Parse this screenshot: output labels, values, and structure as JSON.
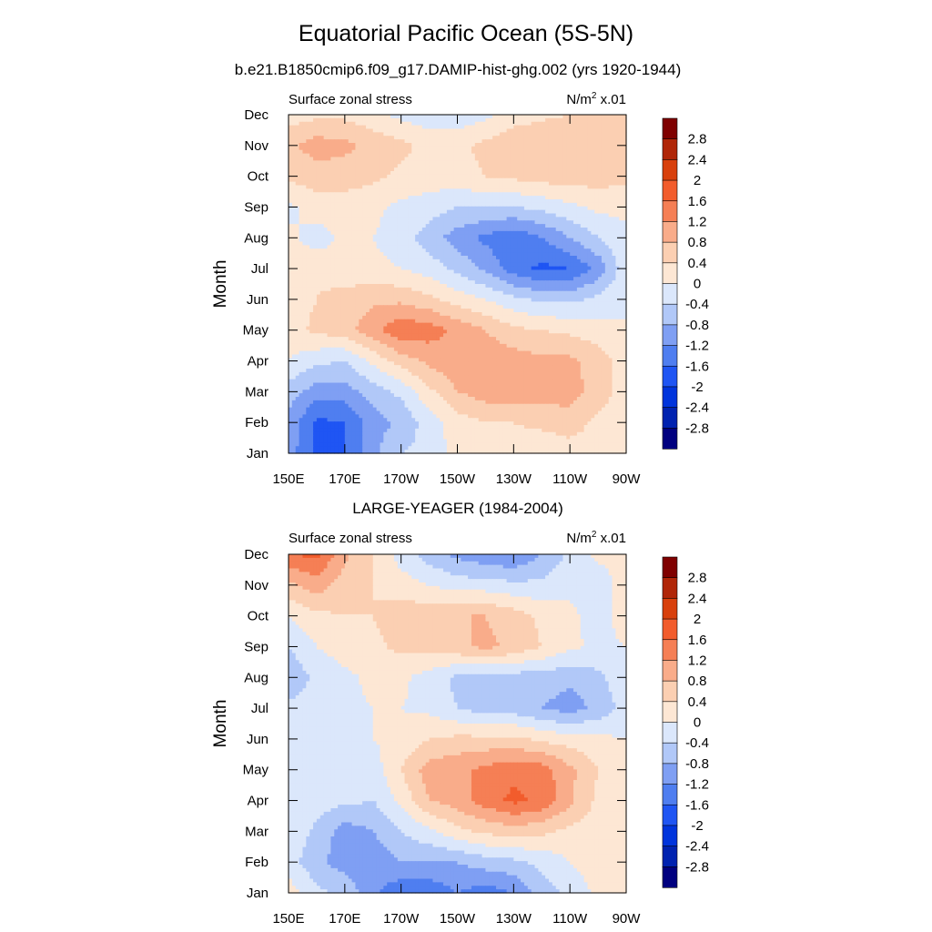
{
  "figure": {
    "title": "Equatorial Pacific Ocean (5S-5N)"
  },
  "chart_data": [
    {
      "type": "heatmap",
      "title": "b.e21.B1850cmip6.f09_g17.DAMIP-hist-ghg.002 (yrs 1920-1944)",
      "left_label": "Surface zonal stress",
      "units_main": "N/m",
      "units_sup": "2",
      "units_scale": "x.01",
      "ylabel": "Month",
      "xlabel": "",
      "x_ticks": [
        "150E",
        "170E",
        "170W",
        "150W",
        "130W",
        "110W",
        "90W"
      ],
      "y_ticks": [
        "Jan",
        "Feb",
        "Mar",
        "Apr",
        "May",
        "Jun",
        "Jul",
        "Aug",
        "Sep",
        "Oct",
        "Nov",
        "Dec"
      ],
      "levels": [
        -2.8,
        -2.4,
        -2,
        -1.6,
        -1.2,
        -0.8,
        -0.4,
        0,
        0.4,
        0.8,
        1.2,
        1.6,
        2,
        2.4,
        2.8
      ],
      "grid": [
        [
          -1.0,
          -1.7,
          -1.6,
          -0.9,
          -0.4,
          -0.3,
          0.2,
          0.3,
          0.2,
          0.1,
          0.2,
          0.2,
          0.2
        ],
        [
          -0.9,
          -1.7,
          -1.6,
          -1.0,
          -0.7,
          -0.2,
          0.2,
          0.4,
          0.4,
          0.5,
          0.6,
          0.3,
          0.2
        ],
        [
          -0.6,
          -1.0,
          -1.0,
          -0.6,
          -0.3,
          0.3,
          0.8,
          1.0,
          1.1,
          1.0,
          1.0,
          0.6,
          0.2
        ],
        [
          0.0,
          -0.3,
          -0.4,
          0.1,
          0.6,
          0.9,
          1.1,
          1.1,
          1.0,
          0.9,
          0.9,
          0.6,
          0.2
        ],
        [
          0.2,
          0.5,
          0.6,
          1.1,
          1.5,
          1.4,
          1.1,
          0.8,
          0.5,
          0.4,
          0.3,
          0.2,
          0.0
        ],
        [
          0.2,
          0.4,
          0.6,
          0.7,
          0.7,
          0.5,
          0.2,
          0.0,
          -0.3,
          -0.5,
          -0.5,
          -0.3,
          0.0
        ],
        [
          0.3,
          0.3,
          0.1,
          0.1,
          0.0,
          -0.2,
          -0.5,
          -0.9,
          -1.4,
          -1.7,
          -1.6,
          -1.1,
          -0.1
        ],
        [
          0.1,
          -0.2,
          0.1,
          0.0,
          -0.2,
          -0.6,
          -1.0,
          -1.3,
          -1.5,
          -1.2,
          -0.8,
          -0.4,
          -0.1
        ],
        [
          -0.1,
          0.2,
          0.2,
          0.1,
          -0.1,
          -0.2,
          -0.4,
          -0.4,
          -0.4,
          -0.3,
          -0.1,
          0.1,
          0.1
        ],
        [
          0.5,
          0.6,
          0.6,
          0.5,
          0.3,
          0.2,
          0.3,
          0.4,
          0.5,
          0.6,
          0.6,
          0.6,
          0.5
        ],
        [
          0.7,
          1.0,
          0.9,
          0.7,
          0.5,
          0.3,
          0.3,
          0.5,
          0.7,
          0.8,
          0.8,
          0.8,
          0.6
        ],
        [
          0.2,
          0.3,
          0.3,
          0.1,
          -0.1,
          -0.3,
          -0.3,
          -0.1,
          0.2,
          0.3,
          0.4,
          0.5,
          0.4
        ]
      ]
    },
    {
      "type": "heatmap",
      "title": "LARGE-YEAGER (1984-2004)",
      "left_label": "Surface zonal stress",
      "units_main": "N/m",
      "units_sup": "2",
      "units_scale": "x.01",
      "ylabel": "Month",
      "xlabel": "",
      "x_ticks": [
        "150E",
        "170E",
        "170W",
        "150W",
        "130W",
        "110W",
        "90W"
      ],
      "y_ticks": [
        "Jan",
        "Feb",
        "Mar",
        "Apr",
        "May",
        "Jun",
        "Jul",
        "Aug",
        "Sep",
        "Oct",
        "Nov",
        "Dec"
      ],
      "levels": [
        -2.8,
        -2.4,
        -2,
        -1.6,
        -1.2,
        -0.8,
        -0.4,
        0,
        0.4,
        0.8,
        1.2,
        1.6,
        2,
        2.4,
        2.8
      ],
      "grid": [
        [
          0.2,
          -0.3,
          -0.5,
          -1.1,
          -1.5,
          -1.5,
          -1.2,
          -1.4,
          -1.2,
          -0.6,
          -0.3,
          0.1,
          0.3
        ],
        [
          -0.2,
          -0.7,
          -1.0,
          -1.1,
          -0.8,
          -0.8,
          -0.8,
          -0.6,
          -0.5,
          -0.3,
          0.0,
          0.2,
          0.2
        ],
        [
          -0.1,
          -0.5,
          -1.0,
          -0.8,
          -0.4,
          -0.1,
          0.3,
          0.5,
          0.6,
          0.5,
          0.3,
          0.2,
          0.2
        ],
        [
          -0.1,
          -0.2,
          -0.3,
          -0.4,
          0.1,
          0.8,
          1.0,
          1.4,
          1.7,
          1.5,
          0.9,
          0.3,
          0.1
        ],
        [
          -0.2,
          -0.3,
          -0.3,
          -0.2,
          0.4,
          1.0,
          1.1,
          1.3,
          1.5,
          1.4,
          0.9,
          0.4,
          0.1
        ],
        [
          -0.3,
          -0.2,
          -0.2,
          0.0,
          0.1,
          0.4,
          0.5,
          0.5,
          0.5,
          0.3,
          0.2,
          0.1,
          0.0
        ],
        [
          -0.3,
          -0.2,
          -0.1,
          0.0,
          0.0,
          -0.1,
          -0.4,
          -0.6,
          -0.6,
          -0.8,
          -1.0,
          -0.7,
          -0.2
        ],
        [
          -0.7,
          -0.3,
          -0.1,
          0.1,
          0.1,
          -0.2,
          -0.5,
          -0.6,
          -0.6,
          -0.6,
          -0.7,
          -0.5,
          -0.1
        ],
        [
          -0.4,
          0.0,
          0.2,
          0.3,
          0.5,
          0.6,
          0.7,
          0.9,
          0.7,
          0.4,
          0.1,
          -0.1,
          0.0
        ],
        [
          0.0,
          0.3,
          0.4,
          0.4,
          0.6,
          0.7,
          0.8,
          0.8,
          0.6,
          0.3,
          0.1,
          -0.2,
          0.2
        ],
        [
          0.7,
          1.0,
          0.6,
          0.4,
          0.2,
          0.0,
          -0.2,
          -0.2,
          -0.3,
          -0.3,
          -0.1,
          -0.2,
          0.2
        ],
        [
          1.6,
          1.7,
          0.9,
          0.4,
          -0.2,
          -0.6,
          -0.9,
          -1.1,
          -1.2,
          -0.8,
          -0.3,
          0.1,
          0.0
        ]
      ]
    }
  ],
  "colorbar": {
    "colors": [
      "#00007f",
      "#0022b0",
      "#0034dc",
      "#1f55f3",
      "#4f7ef0",
      "#7f9ff3",
      "#b1c8f8",
      "#dbe7fb",
      "#fde7d4",
      "#fbcfb2",
      "#f9ac8a",
      "#f57f55",
      "#f25c2c",
      "#d8400c",
      "#b02608",
      "#7f0000"
    ],
    "labels": [
      "2.8",
      "2.4",
      "2",
      "1.6",
      "1.2",
      "0.8",
      "0.4",
      "0",
      "-0.4",
      "-0.8",
      "-1.2",
      "-1.6",
      "-2",
      "-2.4",
      "-2.8"
    ]
  }
}
